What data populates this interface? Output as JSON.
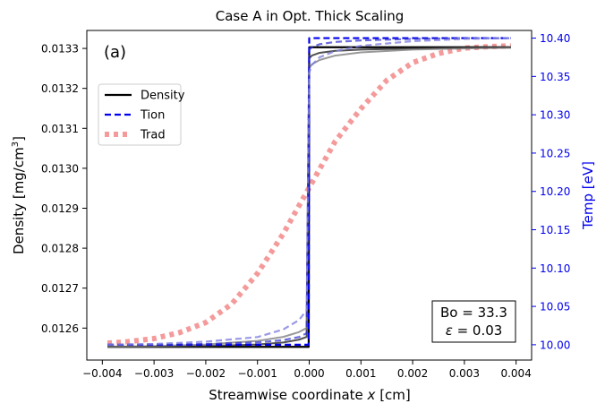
{
  "chart_data": {
    "type": "line",
    "title": "Case A in Opt. Thick Scaling",
    "panel_label": "(a)",
    "xlabel_prefix": "Streamwise coordinate ",
    "xlabel_var": "x",
    "xlabel_suffix": " [cm]",
    "ylabel_left_prefix": "Density [mg/cm",
    "ylabel_left_sup": "3",
    "ylabel_left_suffix": "]",
    "ylabel_right": "Temp [eV]",
    "xlim": [
      -0.0043,
      0.0043
    ],
    "ylim_left": [
      0.01252,
      0.013345
    ],
    "ylim_right": [
      9.98,
      10.41
    ],
    "x_ticks": [
      -0.004,
      -0.003,
      -0.002,
      -0.001,
      0.0,
      0.001,
      0.002,
      0.003,
      0.004
    ],
    "x_tick_labels": [
      "−0.004",
      "−0.003",
      "−0.002",
      "−0.001",
      "0.000",
      "0.001",
      "0.002",
      "0.003",
      "0.004"
    ],
    "y_left_ticks": [
      0.0126,
      0.0127,
      0.0128,
      0.0129,
      0.013,
      0.0131,
      0.0132,
      0.0133
    ],
    "y_left_tick_labels": [
      "0.0126",
      "0.0127",
      "0.0128",
      "0.0129",
      "0.0130",
      "0.0131",
      "0.0132",
      "0.0133"
    ],
    "y_right_ticks": [
      10.0,
      10.05,
      10.1,
      10.15,
      10.2,
      10.25,
      10.3,
      10.35,
      10.4
    ],
    "y_right_tick_labels": [
      "10.00",
      "10.05",
      "10.10",
      "10.15",
      "10.20",
      "10.25",
      "10.30",
      "10.35",
      "10.40"
    ],
    "legend": {
      "placement": "upper-left",
      "entries": [
        {
          "label": "Density",
          "color": "#000000",
          "style": "solid"
        },
        {
          "label": "Tion",
          "color": "#0000ee",
          "style": "dashed"
        },
        {
          "label": "Trad",
          "color": "#f4a0a0",
          "style": "dotted"
        }
      ]
    },
    "annotation_line1": "Bo = 33.3",
    "annotation_line2_var": "ε",
    "annotation_line2_rest": " = 0.03",
    "series": [
      {
        "kind": "density",
        "axis": "left",
        "color": "#000000",
        "opacity": 1.0,
        "width": 2.2,
        "x": [
          -0.0039,
          -0.001,
          -1e-05,
          0.0,
          1e-05,
          0.0039
        ],
        "y": [
          0.012553,
          0.012553,
          0.012553,
          0.013303,
          0.013303,
          0.013303
        ]
      },
      {
        "kind": "density",
        "axis": "left",
        "color": "#333333",
        "opacity": 0.85,
        "width": 2.0,
        "x": [
          -0.0039,
          -0.003,
          -0.002,
          -0.001,
          -0.0005,
          -0.0002,
          -5e-05,
          0.0,
          5e-05,
          0.0002,
          0.0005,
          0.001,
          0.002,
          0.003,
          0.0039
        ],
        "y": [
          0.012553,
          0.012553,
          0.012555,
          0.012559,
          0.012564,
          0.012571,
          0.012578,
          0.013275,
          0.013282,
          0.013289,
          0.013294,
          0.013297,
          0.0133,
          0.013302,
          0.013302
        ]
      },
      {
        "kind": "density",
        "axis": "left",
        "color": "#777777",
        "opacity": 0.75,
        "width": 2.0,
        "x": [
          -0.0039,
          -0.003,
          -0.002,
          -0.001,
          -0.0005,
          -0.0002,
          -5e-05,
          0.0,
          5e-05,
          0.0002,
          0.0005,
          0.001,
          0.002,
          0.003,
          0.0039
        ],
        "y": [
          0.012553,
          0.012555,
          0.012559,
          0.012568,
          0.012578,
          0.01259,
          0.0126,
          0.01325,
          0.01326,
          0.013271,
          0.013282,
          0.01329,
          0.013297,
          0.0133,
          0.013302
        ]
      },
      {
        "kind": "tion",
        "axis": "right",
        "color": "#0000ee",
        "opacity": 1.0,
        "width": 2.2,
        "dash": "7,4",
        "x": [
          -0.0039,
          -0.001,
          -1e-05,
          0.0,
          1e-05,
          0.0039
        ],
        "y": [
          10.0,
          10.0,
          10.0,
          10.4,
          10.4,
          10.4
        ]
      },
      {
        "kind": "tion",
        "axis": "right",
        "color": "#2a2ad0",
        "opacity": 0.7,
        "width": 2.2,
        "dash": "7,4",
        "x": [
          -0.0039,
          -0.003,
          -0.002,
          -0.001,
          -0.0005,
          -0.0002,
          -5e-05,
          0.0,
          5e-05,
          0.0002,
          0.0005,
          0.001,
          0.002,
          0.003,
          0.0039
        ],
        "y": [
          10.0,
          10.0,
          10.001,
          10.003,
          10.006,
          10.01,
          10.015,
          10.385,
          10.388,
          10.392,
          10.395,
          10.397,
          10.399,
          10.4,
          10.4
        ]
      },
      {
        "kind": "tion",
        "axis": "right",
        "color": "#8080e0",
        "opacity": 0.8,
        "width": 2.2,
        "dash": "7,4",
        "x": [
          -0.0039,
          -0.003,
          -0.002,
          -0.001,
          -0.0005,
          -0.0002,
          -5e-05,
          0.0,
          5e-05,
          0.0002,
          0.0005,
          0.001,
          0.002,
          0.003,
          0.0039
        ],
        "y": [
          10.0,
          10.001,
          10.004,
          10.01,
          10.02,
          10.032,
          10.045,
          10.355,
          10.365,
          10.375,
          10.383,
          10.39,
          10.396,
          10.399,
          10.4
        ]
      },
      {
        "kind": "trad",
        "axis": "right",
        "color": "#f07878",
        "opacity": 0.75,
        "width": 6,
        "dash": "5,5",
        "x": [
          -0.0039,
          -0.0035,
          -0.003,
          -0.0025,
          -0.002,
          -0.0015,
          -0.001,
          -0.0005,
          0.0,
          0.0005,
          0.001,
          0.0015,
          0.002,
          0.0025,
          0.003,
          0.0035,
          0.0039
        ],
        "y": [
          10.002,
          10.004,
          10.008,
          10.016,
          10.029,
          10.053,
          10.093,
          10.145,
          10.205,
          10.265,
          10.308,
          10.345,
          10.368,
          10.38,
          10.387,
          10.389,
          10.39
        ]
      }
    ]
  }
}
